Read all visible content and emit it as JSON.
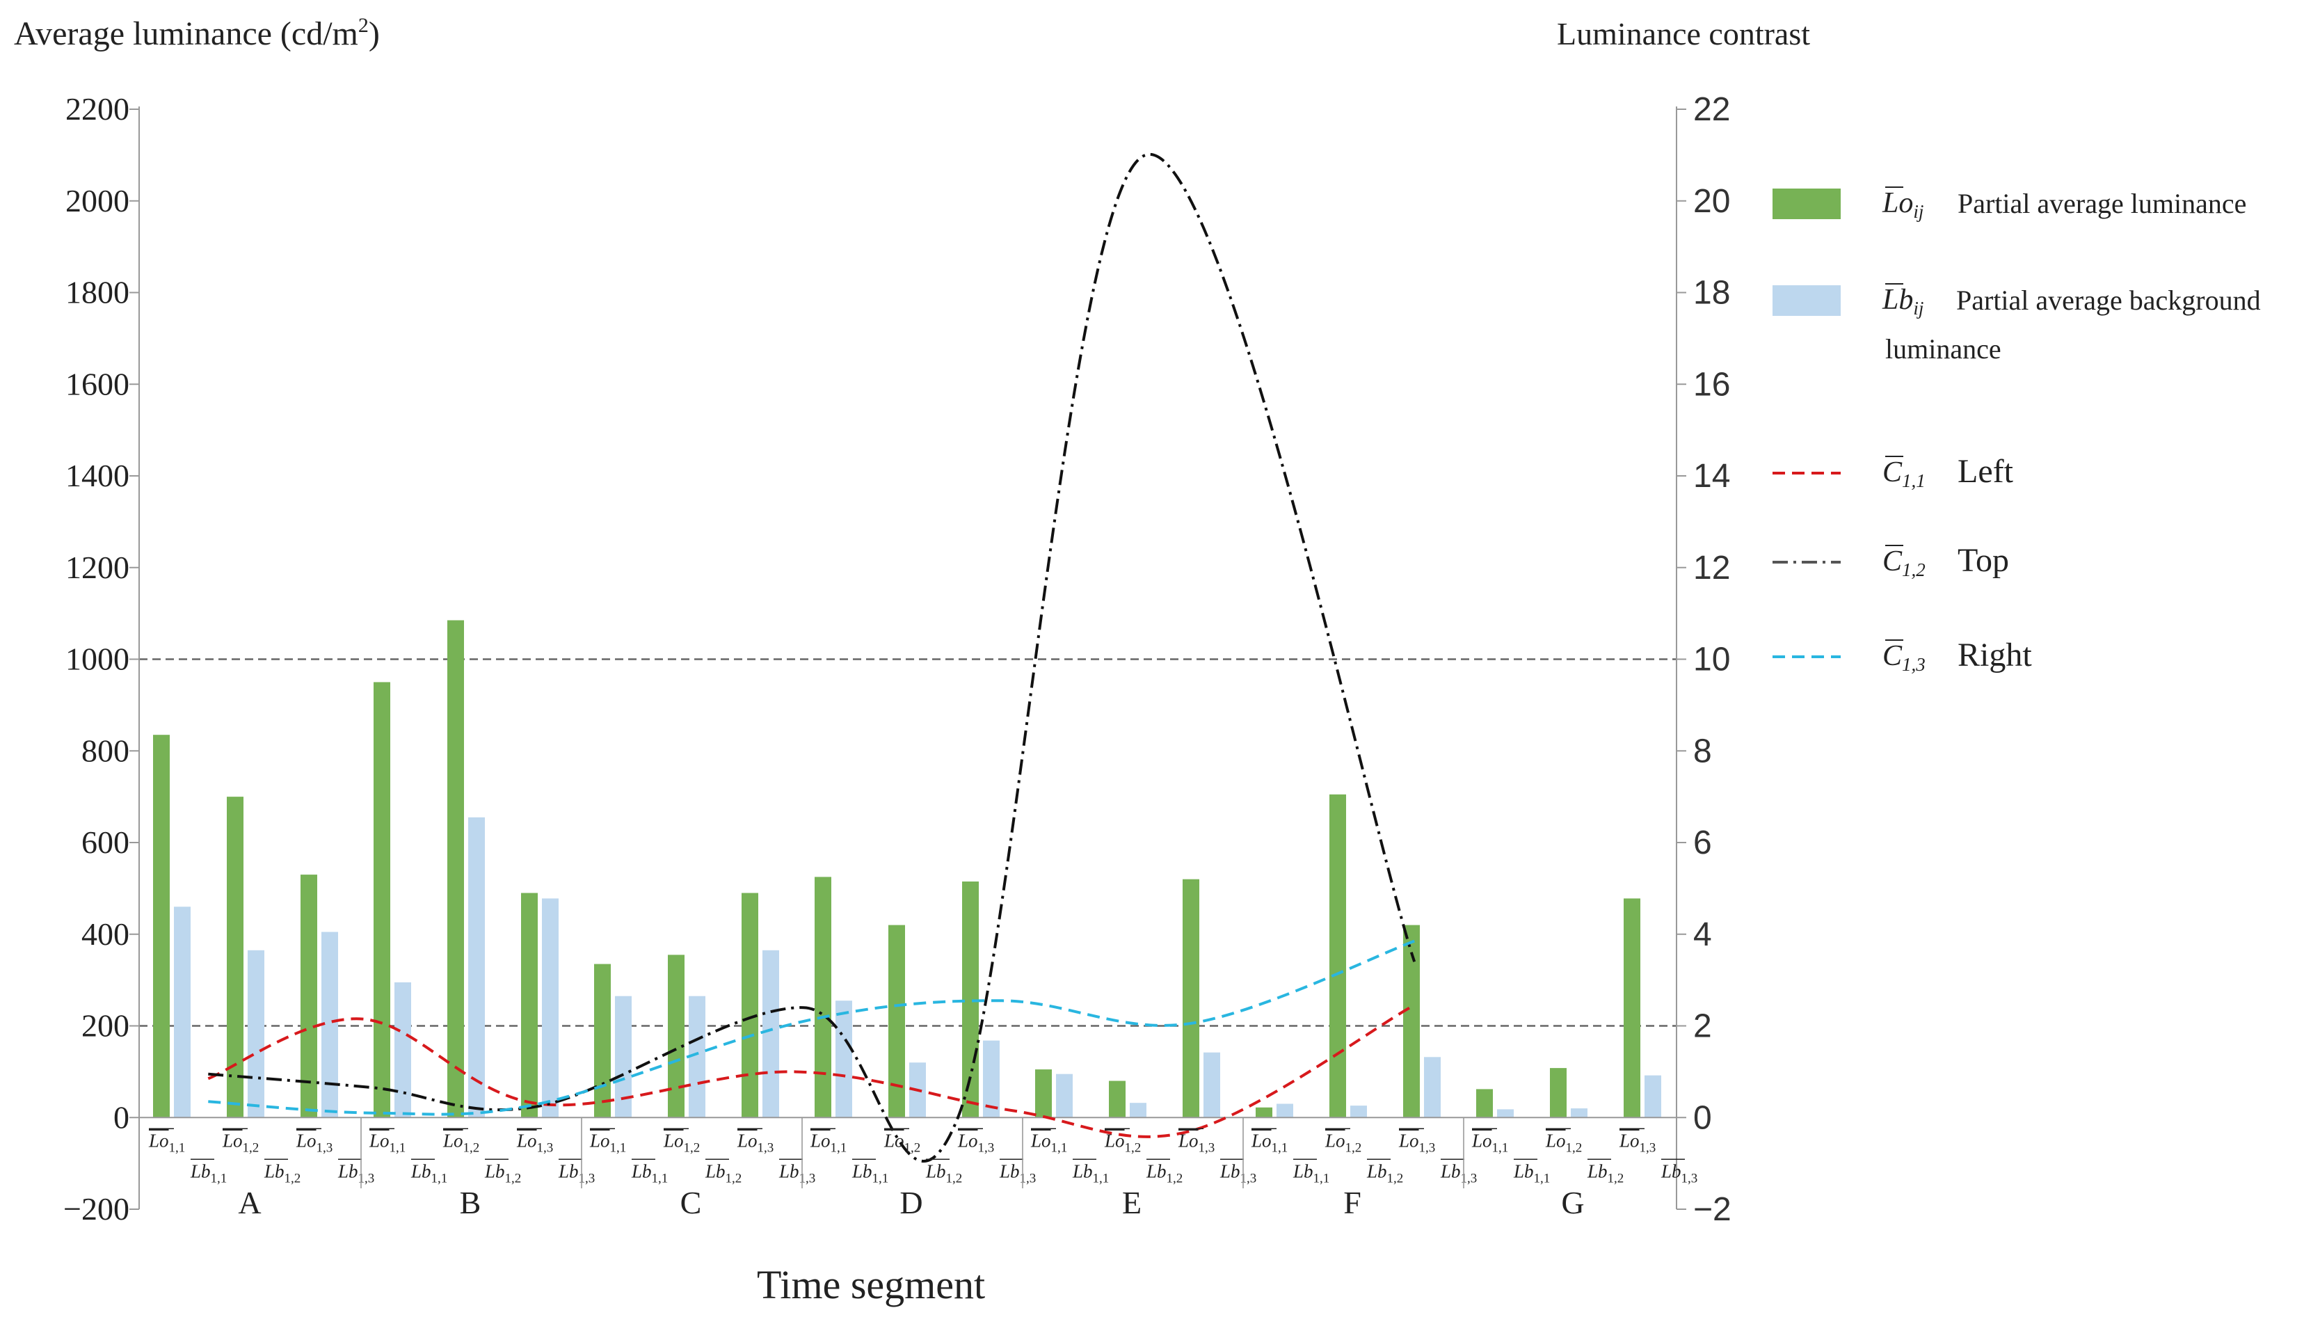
{
  "chart_data": {
    "type": "bar",
    "title": "",
    "xlabel": "Time segment",
    "ylabel": "Average luminance (cd/m",
    "ylabel_sup": "2",
    "ylabel_close": ")",
    "y2label": "Luminance contrast",
    "ylim": [
      -200,
      2200
    ],
    "y2lim": [
      -2,
      22
    ],
    "yticks": [
      "−200",
      "0",
      "200",
      "400",
      "600",
      "800",
      "1000",
      "1200",
      "1400",
      "1600",
      "1800",
      "2000",
      "2200"
    ],
    "y2ticks": [
      "−2",
      "0",
      "2",
      "4",
      "6",
      "8",
      "10",
      "12",
      "14",
      "16",
      "18",
      "20",
      "22"
    ],
    "reference_lines_right_axis": [
      2,
      10
    ],
    "groups": [
      "A",
      "B",
      "C",
      "D",
      "E",
      "F",
      "G"
    ],
    "tick_labels": {
      "lo": [
        "Lo",
        "1,1",
        "1,2",
        "1,3"
      ],
      "lb": [
        "Lb",
        "1,1",
        "1,2",
        "1,3"
      ]
    },
    "series": [
      {
        "name": "Partial average luminance",
        "symbol": "Lo",
        "sub": "ij",
        "color": "#77b255",
        "values": [
          [
            835,
            700,
            530
          ],
          [
            950,
            1085,
            490
          ],
          [
            335,
            355,
            490
          ],
          [
            525,
            420,
            515
          ],
          [
            105,
            80,
            520
          ],
          [
            22,
            705,
            420
          ],
          [
            62,
            108,
            478
          ]
        ]
      },
      {
        "name": "Partial average background luminance",
        "symbol": "Lb",
        "sub": "ij",
        "color": "#bdd7ee",
        "values": [
          [
            460,
            365,
            405
          ],
          [
            295,
            655,
            478
          ],
          [
            265,
            265,
            365
          ],
          [
            255,
            120,
            168
          ],
          [
            95,
            32,
            142
          ],
          [
            30,
            26,
            132
          ],
          [
            18,
            20,
            92
          ]
        ]
      }
    ],
    "contrast_series": [
      {
        "name": "Left",
        "symbol": "C",
        "sub": "1,1",
        "color": "#d7191c",
        "dash": "dashed",
        "x_groups": [
          0.25,
          0.95,
          1.75,
          2.9,
          3.9,
          4.7,
          5.7
        ],
        "values": [
          0.85,
          2.15,
          0.3,
          1.0,
          0.15,
          -0.3,
          2.4
        ]
      },
      {
        "name": "Top",
        "symbol": "C",
        "sub": "1,2",
        "color": "#111111",
        "dash": "dashdot",
        "x_groups": [
          0.25,
          1.0,
          1.75,
          2.95,
          3.65,
          4.5,
          5.72
        ],
        "values": [
          0.95,
          0.65,
          0.25,
          2.4,
          0.0,
          21.0,
          3.4
        ]
      },
      {
        "name": "Right",
        "symbol": "C",
        "sub": "1,3",
        "color": "#29b6e0",
        "dash": "dashed",
        "x_groups": [
          0.25,
          1.0,
          1.75,
          2.95,
          3.85,
          4.7,
          5.72
        ],
        "values": [
          0.35,
          0.1,
          0.3,
          2.1,
          2.55,
          2.05,
          3.85
        ]
      }
    ],
    "legend": {
      "position": "top-right",
      "items": [
        {
          "symbol": "Lo",
          "sub": "ij",
          "label": "Partial average luminance",
          "color": "#77b255",
          "kind": "patch"
        },
        {
          "symbol": "Lb",
          "sub": "ij",
          "label": "Partial average background",
          "label2": "luminance",
          "color": "#bdd7ee",
          "kind": "patch"
        },
        {
          "symbol": "C",
          "sub": "1,1",
          "label": "Left",
          "color": "#d7191c",
          "kind": "dashed"
        },
        {
          "symbol": "C",
          "sub": "1,2",
          "label": "Top",
          "color": "#555555",
          "kind": "dashdot"
        },
        {
          "symbol": "C",
          "sub": "1,3",
          "label": "Right",
          "color": "#29b6e0",
          "kind": "dashed"
        }
      ]
    }
  }
}
